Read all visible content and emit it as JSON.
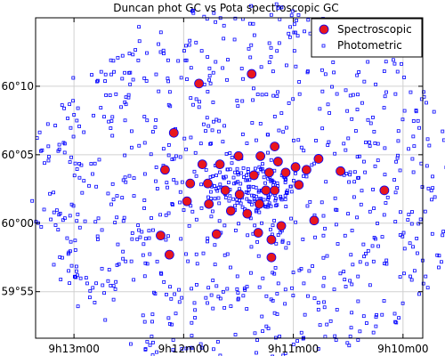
{
  "chart_data": {
    "type": "scatter",
    "title": "Duncan phot GC vs Pota spectroscopic GC",
    "xlabel": "",
    "ylabel": "",
    "x_units": "minutes of right ascension after 9h00m",
    "y_units": "arcminutes of declination after 59°00'",
    "xlim": [
      13.35,
      9.82
    ],
    "ylim": [
      51.6,
      75.0
    ],
    "x_ticks": [
      {
        "value": 13.0,
        "label": "9h13m00"
      },
      {
        "value": 12.0,
        "label": "9h12m00"
      },
      {
        "value": 11.0,
        "label": "9h11m00"
      },
      {
        "value": 10.0,
        "label": "9h10m00"
      }
    ],
    "y_ticks": [
      {
        "value": 55,
        "label": "59°55"
      },
      {
        "value": 60,
        "label": "60°00"
      },
      {
        "value": 65,
        "label": "60°05"
      },
      {
        "value": 70,
        "label": "60°10"
      }
    ],
    "grid": true,
    "legend_position": "top-right",
    "center": {
      "x": 11.42,
      "y": 62.55
    },
    "radius": 13.6,
    "photometric_count": 1000,
    "series": [
      {
        "name": "Spectroscopic",
        "marker": "filled-circle",
        "color": "#e8171d",
        "edge": "#0000ff",
        "points": [
          [
            11.86,
            70.2
          ],
          [
            11.38,
            70.9
          ],
          [
            12.09,
            66.6
          ],
          [
            12.17,
            63.9
          ],
          [
            11.17,
            65.6
          ],
          [
            10.77,
            64.7
          ],
          [
            10.57,
            63.8
          ],
          [
            10.17,
            62.4
          ],
          [
            11.83,
            64.3
          ],
          [
            11.67,
            64.3
          ],
          [
            11.5,
            64.9
          ],
          [
            11.3,
            64.9
          ],
          [
            11.14,
            64.5
          ],
          [
            10.98,
            64.1
          ],
          [
            11.78,
            62.9
          ],
          [
            11.94,
            62.9
          ],
          [
            11.62,
            62.4
          ],
          [
            11.49,
            62.1
          ],
          [
            11.36,
            63.5
          ],
          [
            11.22,
            63.7
          ],
          [
            11.07,
            63.7
          ],
          [
            10.95,
            62.8
          ],
          [
            10.88,
            63.9
          ],
          [
            11.97,
            61.6
          ],
          [
            11.77,
            61.4
          ],
          [
            11.57,
            60.9
          ],
          [
            11.42,
            60.7
          ],
          [
            11.11,
            59.8
          ],
          [
            10.81,
            60.2
          ],
          [
            11.32,
            59.3
          ],
          [
            11.7,
            59.2
          ],
          [
            11.2,
            58.8
          ],
          [
            12.21,
            59.1
          ],
          [
            12.13,
            57.7
          ],
          [
            11.2,
            57.5
          ],
          [
            11.31,
            61.4
          ],
          [
            11.17,
            62.4
          ],
          [
            11.25,
            62.4
          ]
        ]
      },
      {
        "name": "Photometric",
        "marker": "small-open-square",
        "color": "#0000ff"
      }
    ]
  },
  "legend": {
    "items": [
      {
        "label": "Spectroscopic",
        "color": "#e8171d"
      },
      {
        "label": "Photometric",
        "color": "#0000ff"
      }
    ]
  }
}
